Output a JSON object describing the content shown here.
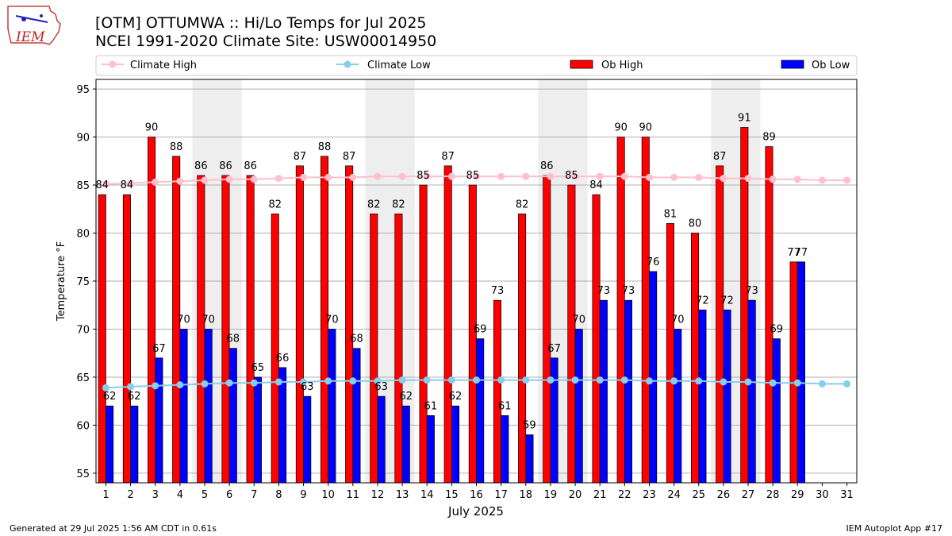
{
  "header": {
    "title": "[OTM] OTTUMWA :: Hi/Lo Temps for Jul 2025",
    "subtitle": "NCEI 1991-2020 Climate Site: USW00014950",
    "logo_text": "IEM"
  },
  "footer": {
    "left": "Generated at 29 Jul 2025 1:56 AM CDT in 0.61s",
    "right": "IEM Autoplot App #17"
  },
  "colors": {
    "ob_high": "#ff0000",
    "ob_low": "#0000ff",
    "climate_high": "#ffc0cb",
    "climate_low": "#87ceeb",
    "weekend_shade": "#eeeeee",
    "grid": "#b0b0b0"
  },
  "chart_data": {
    "type": "bar",
    "xlabel": "July 2025",
    "ylabel": "Temperature °F",
    "ylim": [
      54,
      96
    ],
    "yticks": [
      55,
      60,
      65,
      70,
      75,
      80,
      85,
      90,
      95
    ],
    "grid": "horizontal",
    "legend_position": "top",
    "x": [
      1,
      2,
      3,
      4,
      5,
      6,
      7,
      8,
      9,
      10,
      11,
      12,
      13,
      14,
      15,
      16,
      17,
      18,
      19,
      20,
      21,
      22,
      23,
      24,
      25,
      26,
      27,
      28,
      29,
      30,
      31
    ],
    "weekend_days": [
      5,
      6,
      12,
      13,
      19,
      20,
      26,
      27
    ],
    "series": [
      {
        "name": "Climate High",
        "kind": "line",
        "values": [
          85.1,
          85.2,
          85.3,
          85.4,
          85.5,
          85.6,
          85.6,
          85.7,
          85.8,
          85.8,
          85.8,
          85.9,
          85.9,
          85.9,
          85.9,
          85.9,
          85.9,
          85.9,
          85.9,
          85.9,
          85.9,
          85.9,
          85.8,
          85.8,
          85.8,
          85.7,
          85.7,
          85.6,
          85.6,
          85.5,
          85.5
        ]
      },
      {
        "name": "Climate Low",
        "kind": "line",
        "values": [
          63.9,
          64.0,
          64.1,
          64.2,
          64.3,
          64.4,
          64.4,
          64.5,
          64.5,
          64.6,
          64.6,
          64.6,
          64.7,
          64.7,
          64.7,
          64.7,
          64.7,
          64.7,
          64.7,
          64.7,
          64.7,
          64.7,
          64.6,
          64.6,
          64.6,
          64.5,
          64.5,
          64.4,
          64.4,
          64.3,
          64.3
        ]
      },
      {
        "name": "Ob High",
        "kind": "bar",
        "values": [
          84,
          84,
          90,
          88,
          86,
          86,
          86,
          82,
          87,
          88,
          87,
          82,
          82,
          85,
          87,
          85,
          73,
          82,
          86,
          85,
          84,
          90,
          90,
          81,
          80,
          87,
          91,
          89,
          77,
          null,
          null
        ]
      },
      {
        "name": "Ob Low",
        "kind": "bar",
        "values": [
          62,
          62,
          67,
          70,
          70,
          68,
          65,
          66,
          63,
          70,
          68,
          63,
          62,
          61,
          62,
          69,
          61,
          59,
          67,
          70,
          73,
          73,
          76,
          70,
          72,
          72,
          73,
          69,
          77,
          null,
          null
        ]
      }
    ]
  }
}
